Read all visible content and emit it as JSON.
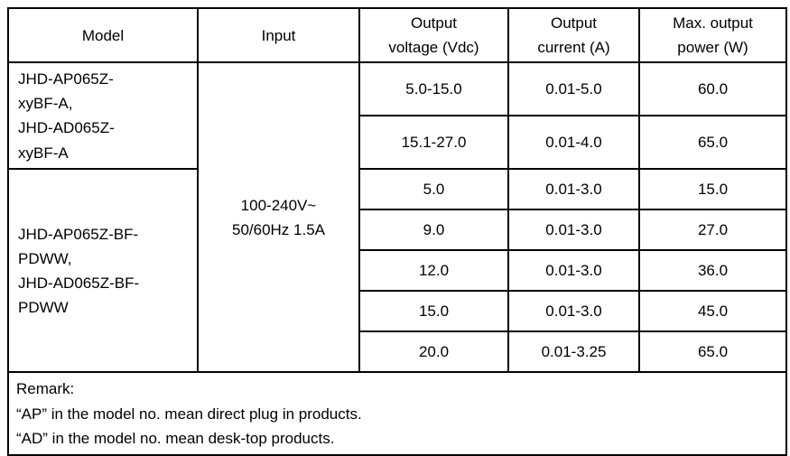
{
  "table": {
    "headers": {
      "model": "Model",
      "input": "Input",
      "voltage": "Output\nvoltage (Vdc)",
      "current": "Output\ncurrent (A)",
      "power": "Max. output\npower (W)"
    },
    "model_groups": [
      {
        "label": "JHD-AP065Z-\nxyBF-A,\nJHD-AD065Z-\nxyBF-A"
      },
      {
        "label": "JHD-AP065Z-BF-\nPDWW,\nJHD-AD065Z-BF-\nPDWW"
      }
    ],
    "input_value": "100-240V~\n50/60Hz 1.5A",
    "rows": [
      {
        "voltage": "5.0-15.0",
        "current": "0.01-5.0",
        "power": "60.0"
      },
      {
        "voltage": "15.1-27.0",
        "current": "0.01-4.0",
        "power": "65.0"
      },
      {
        "voltage": "5.0",
        "current": "0.01-3.0",
        "power": "15.0"
      },
      {
        "voltage": "9.0",
        "current": "0.01-3.0",
        "power": "27.0"
      },
      {
        "voltage": "12.0",
        "current": "0.01-3.0",
        "power": "36.0"
      },
      {
        "voltage": "15.0",
        "current": "0.01-3.0",
        "power": "45.0"
      },
      {
        "voltage": "20.0",
        "current": "0.01-3.25",
        "power": "65.0"
      }
    ],
    "remark": {
      "title": "Remark:",
      "line1": "“AP” in the model no. mean direct plug in products.",
      "line2": "“AD” in the model no. mean desk-top products."
    }
  },
  "colors": {
    "border": "#000000",
    "text": "#000000",
    "background": "#ffffff"
  }
}
